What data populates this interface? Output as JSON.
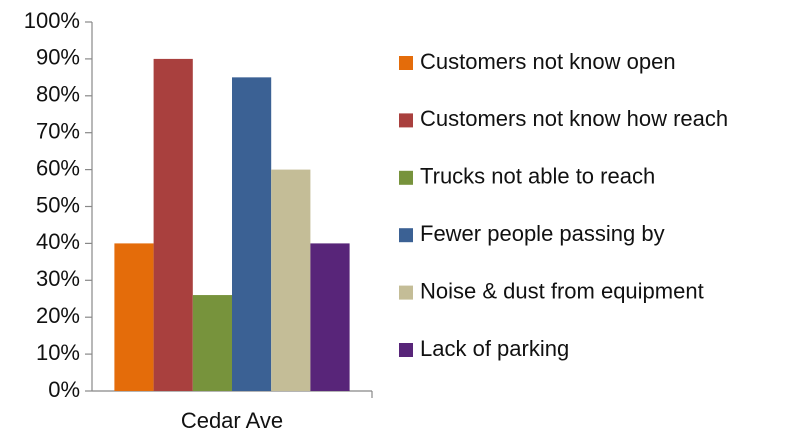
{
  "chart_data": {
    "type": "bar",
    "categories": [
      "Cedar Ave"
    ],
    "series": [
      {
        "name": "Customers not know open",
        "color": "#e46c0a",
        "values": [
          40
        ]
      },
      {
        "name": "Customers not know how reach",
        "color": "#a9403e",
        "values": [
          90
        ]
      },
      {
        "name": "Trucks not able to reach",
        "color": "#77933c",
        "values": [
          26
        ]
      },
      {
        "name": "Fewer people passing by",
        "color": "#3b6194",
        "values": [
          85
        ]
      },
      {
        "name": "Noise & dust from equipment",
        "color": "#c4bd97",
        "values": [
          60
        ]
      },
      {
        "name": "Lack of parking",
        "color": "#582579",
        "values": [
          40
        ]
      }
    ],
    "ylim": [
      0,
      100
    ],
    "yticks": [
      {
        "value": 0,
        "label": "0%"
      },
      {
        "value": 10,
        "label": "10%"
      },
      {
        "value": 20,
        "label": "20%"
      },
      {
        "value": 30,
        "label": "30%"
      },
      {
        "value": 40,
        "label": "40%"
      },
      {
        "value": 50,
        "label": "50%"
      },
      {
        "value": 60,
        "label": "60%"
      },
      {
        "value": 70,
        "label": "70%"
      },
      {
        "value": 80,
        "label": "80%"
      },
      {
        "value": 90,
        "label": "90%"
      },
      {
        "value": 100,
        "label": "100%"
      }
    ],
    "grid": false,
    "legend": "right"
  }
}
